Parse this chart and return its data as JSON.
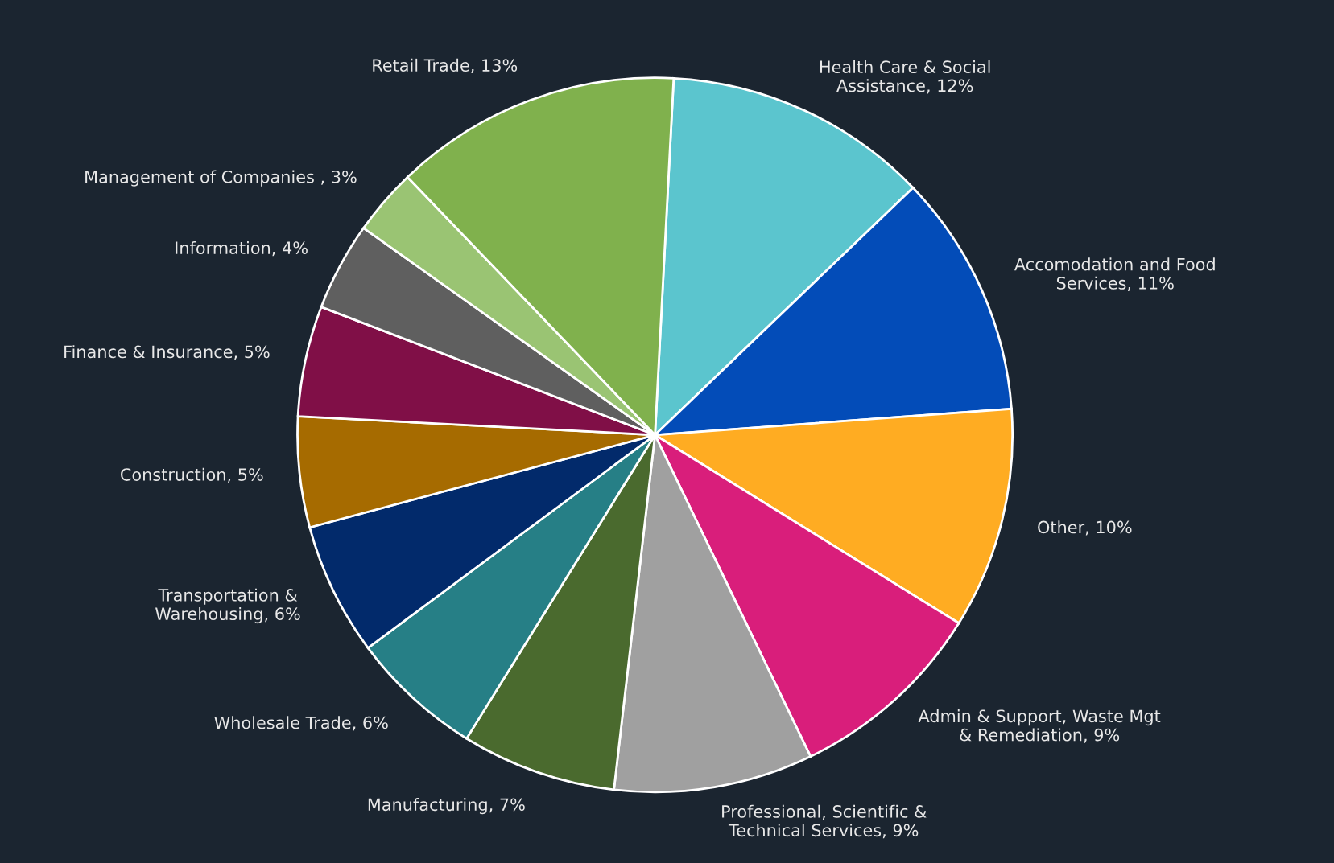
{
  "chart_data": {
    "type": "pie",
    "categories": [
      "Health Care & Social Assistance",
      "Accomodation and Food Services",
      "Other",
      "Admin & Support, Waste Mgt & Remediation",
      "Professional, Scientific & Technical Services",
      "Manufacturing",
      "Wholesale Trade",
      "Transportation & Warehousing",
      "Construction",
      "Finance & Insurance",
      "Information",
      "Management of Companies ",
      "Retail Trade"
    ],
    "values": [
      12,
      11,
      10,
      9,
      9,
      7,
      6,
      6,
      5,
      5,
      4,
      3,
      13
    ],
    "value_labels": [
      "12%",
      "11%",
      "10%",
      "9%",
      "9%",
      "7%",
      "6%",
      "6%",
      "5%",
      "5%",
      "4%",
      "3%",
      "13%"
    ],
    "colors": [
      "#5bc5ce",
      "#034cb8",
      "#ffac22",
      "#d91e7b",
      "#a0a0a0",
      "#4a6a2e",
      "#267f86",
      "#022a6b",
      "#a66b00",
      "#800f47",
      "#5f5f5f",
      "#9ac473",
      "#80b14d"
    ]
  }
}
